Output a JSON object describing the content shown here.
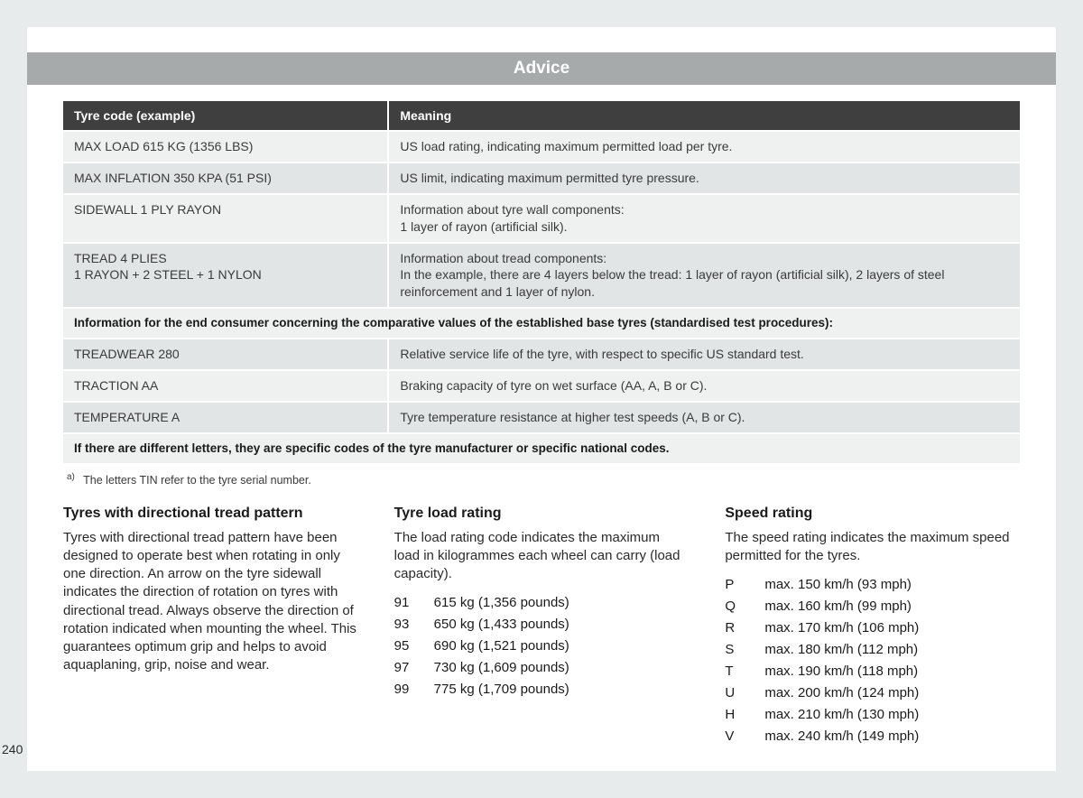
{
  "title": "Advice",
  "table": {
    "headers": [
      "Tyre code (example)",
      "Meaning"
    ],
    "rows": [
      {
        "style": "light",
        "cells": [
          "MAX LOAD 615 KG (1356 LBS)",
          "US load rating, indicating maximum permitted load per tyre."
        ]
      },
      {
        "style": "dark",
        "cells": [
          "MAX INFLATION 350 KPA (51 PSI)",
          "US limit, indicating maximum permitted tyre pressure."
        ]
      },
      {
        "style": "light",
        "cells": [
          "SIDEWALL 1 PLY RAYON",
          "Information about tyre wall components:\n1 layer of rayon (artificial silk)."
        ]
      },
      {
        "style": "dark",
        "cells": [
          "TREAD 4 PLIES\n1 RAYON + 2 STEEL + 1 NYLON",
          "Information about tread components:\nIn the example, there are 4 layers below the tread: 1 layer of rayon (artificial silk), 2 layers of steel reinforcement and 1 layer of nylon."
        ]
      },
      {
        "style": "span",
        "cells": [
          "Information for the end consumer concerning the comparative values of the established base tyres (standardised test procedures):"
        ]
      },
      {
        "style": "dark",
        "cells": [
          "TREADWEAR 280",
          "Relative service life of the tyre, with respect to specific US standard test."
        ]
      },
      {
        "style": "light",
        "cells": [
          "TRACTION AA",
          "Braking capacity of tyre on wet surface (AA, A, B or C)."
        ]
      },
      {
        "style": "dark",
        "cells": [
          "TEMPERATURE A",
          "Tyre temperature resistance at higher test speeds (A, B or C)."
        ]
      },
      {
        "style": "span",
        "cells": [
          "If there are different letters, they are specific codes of the tyre manufacturer or specific national codes."
        ]
      }
    ]
  },
  "footnote": {
    "marker": "a)",
    "text": "The letters TIN refer to the tyre serial number."
  },
  "columns": {
    "left": {
      "heading": "Tyres with directional tread pattern",
      "body": "Tyres with directional tread pattern have been designed to operate best when rotating in only one direction. An arrow on the tyre sidewall indicates the direction of rotation on tyres with directional tread. Always observe the direction of rotation indicated when mounting the wheel. This guarantees optimum grip and helps to avoid aquaplaning, grip, noise and wear."
    },
    "middle": {
      "heading": "Tyre load rating",
      "body": "The load rating code indicates the maximum load in kilogrammes each wheel can carry (load capacity).",
      "list": [
        {
          "k": "91",
          "v": "615 kg (1,356 pounds)"
        },
        {
          "k": "93",
          "v": "650 kg (1,433 pounds)"
        },
        {
          "k": "95",
          "v": "690 kg (1,521 pounds)"
        },
        {
          "k": "97",
          "v": "730 kg (1,609 pounds)"
        },
        {
          "k": "99",
          "v": "775 kg (1,709 pounds)"
        }
      ]
    },
    "right": {
      "heading": "Speed rating",
      "body": "The speed rating indicates the maximum speed permitted for the tyres.",
      "list": [
        {
          "k": "P",
          "v": "max. 150 km/h (93 mph)"
        },
        {
          "k": "Q",
          "v": "max. 160 km/h (99 mph)"
        },
        {
          "k": "R",
          "v": "max. 170 km/h (106 mph)"
        },
        {
          "k": "S",
          "v": "max. 180 km/h (112 mph)"
        },
        {
          "k": "T",
          "v": "max. 190 km/h (118 mph)"
        },
        {
          "k": "U",
          "v": "max. 200 km/h (124 mph)"
        },
        {
          "k": "H",
          "v": "max. 210 km/h (130 mph)"
        },
        {
          "k": "V",
          "v": "max. 240 km/h (149 mph)"
        }
      ]
    }
  },
  "page_number": "240"
}
